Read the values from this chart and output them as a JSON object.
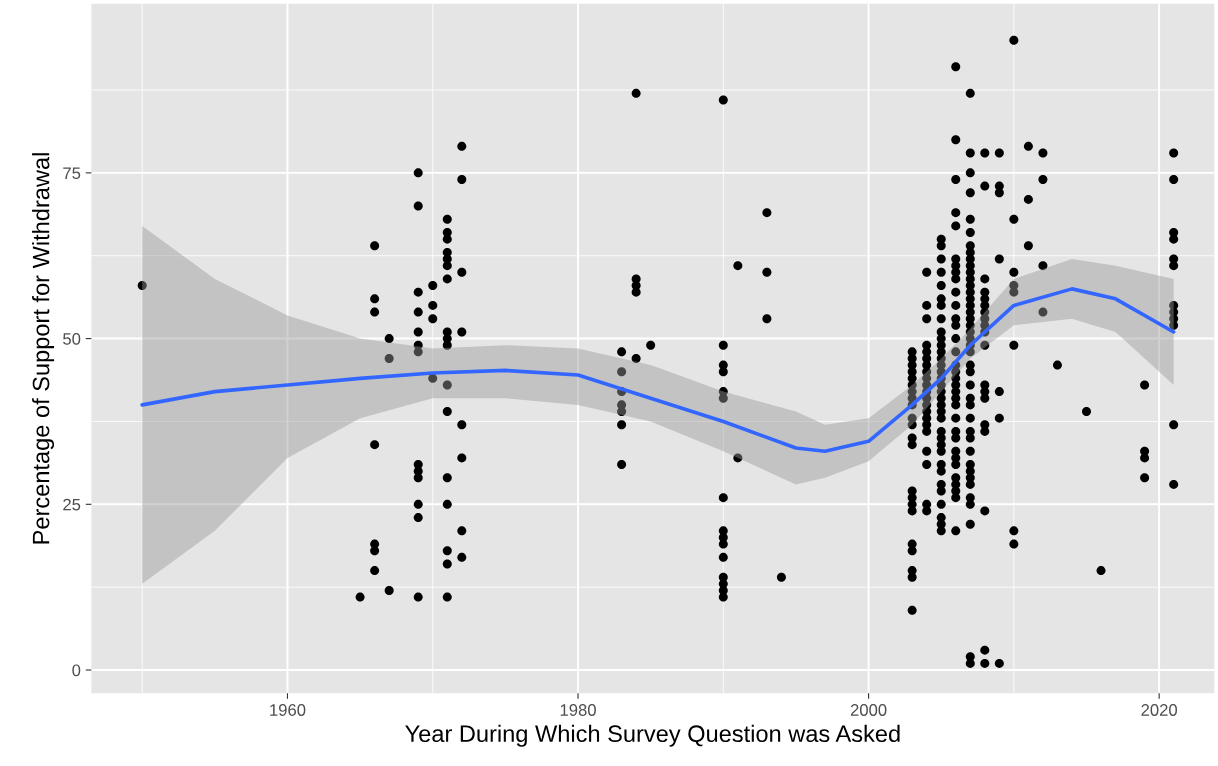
{
  "chart_data": {
    "type": "scatter",
    "xlabel": "Year During Which Survey Question was Asked",
    "ylabel": "Percentage of Support for Withdrawal",
    "xlim": [
      1946.5,
      2023.8
    ],
    "ylim": [
      -3.5,
      100.5
    ],
    "xticks": [
      1960,
      1980,
      2000,
      2020
    ],
    "yticks": [
      0,
      25,
      50,
      75
    ],
    "grid": true,
    "legend": false,
    "series": [
      {
        "color": "#000000",
        "marker": "circle",
        "x": [
          1950,
          1965,
          1966,
          1966,
          1966,
          1966,
          1966,
          1966,
          1966,
          1967,
          1967,
          1967,
          1969,
          1969,
          1969,
          1969,
          1969,
          1969,
          1969,
          1969,
          1969,
          1969,
          1969,
          1969,
          1969,
          1970,
          1970,
          1970,
          1970,
          1971,
          1971,
          1971,
          1971,
          1971,
          1971,
          1971,
          1971,
          1971,
          1971,
          1971,
          1971,
          1971,
          1971,
          1971,
          1971,
          1971,
          1972,
          1972,
          1972,
          1972,
          1972,
          1972,
          1972,
          1972,
          1983,
          1983,
          1983,
          1983,
          1983,
          1983,
          1983,
          1984,
          1984,
          1984,
          1984,
          1984,
          1985,
          1990,
          1990,
          1990,
          1990,
          1990,
          1990,
          1990,
          1990,
          1990,
          1990,
          1990,
          1990,
          1990,
          1990,
          1990,
          1991,
          1991,
          1993,
          1993,
          1993,
          1994,
          2003,
          2003,
          2003,
          2003,
          2003,
          2003,
          2003,
          2003,
          2003,
          2003,
          2003,
          2003,
          2003,
          2003,
          2003,
          2003,
          2003,
          2003,
          2003,
          2003,
          2003,
          2003,
          2004,
          2004,
          2004,
          2004,
          2004,
          2004,
          2004,
          2004,
          2004,
          2004,
          2004,
          2004,
          2004,
          2004,
          2004,
          2004,
          2004,
          2004,
          2004,
          2004,
          2004,
          2005,
          2005,
          2005,
          2005,
          2005,
          2005,
          2005,
          2005,
          2005,
          2005,
          2005,
          2005,
          2005,
          2005,
          2005,
          2005,
          2005,
          2005,
          2005,
          2005,
          2005,
          2005,
          2005,
          2005,
          2005,
          2005,
          2005,
          2005,
          2005,
          2005,
          2005,
          2005,
          2005,
          2005,
          2006,
          2006,
          2006,
          2006,
          2006,
          2006,
          2006,
          2006,
          2006,
          2006,
          2006,
          2006,
          2006,
          2006,
          2006,
          2006,
          2006,
          2006,
          2006,
          2006,
          2006,
          2006,
          2006,
          2006,
          2006,
          2006,
          2006,
          2006,
          2006,
          2006,
          2006,
          2006,
          2006,
          2007,
          2007,
          2007,
          2007,
          2007,
          2007,
          2007,
          2007,
          2007,
          2007,
          2007,
          2007,
          2007,
          2007,
          2007,
          2007,
          2007,
          2007,
          2007,
          2007,
          2007,
          2007,
          2007,
          2007,
          2007,
          2007,
          2007,
          2007,
          2007,
          2007,
          2007,
          2007,
          2007,
          2007,
          2007,
          2007,
          2007,
          2007,
          2007,
          2007,
          2007,
          2008,
          2008,
          2008,
          2008,
          2008,
          2008,
          2008,
          2008,
          2008,
          2008,
          2008,
          2008,
          2008,
          2008,
          2008,
          2008,
          2008,
          2008,
          2008,
          2009,
          2009,
          2009,
          2009,
          2009,
          2009,
          2009,
          2010,
          2010,
          2010,
          2010,
          2010,
          2010,
          2010,
          2010,
          2011,
          2011,
          2011,
          2012,
          2012,
          2012,
          2012,
          2013,
          2015,
          2016,
          2019,
          2019,
          2019,
          2019,
          2021,
          2021,
          2021,
          2021,
          2021,
          2021,
          2021,
          2021,
          2021,
          2021,
          2021,
          2021
        ],
        "values": [
          58,
          11,
          64,
          56,
          54,
          34,
          19,
          18,
          15,
          50,
          47,
          12,
          75,
          70,
          57,
          54,
          51,
          49,
          48,
          31,
          30,
          29,
          25,
          23,
          11,
          58,
          55,
          53,
          44,
          68,
          66,
          65,
          63,
          62,
          61,
          59,
          51,
          50,
          49,
          43,
          39,
          29,
          25,
          18,
          16,
          11,
          79,
          74,
          60,
          51,
          37,
          32,
          21,
          17,
          48,
          45,
          42,
          40,
          39,
          37,
          31,
          87,
          59,
          58,
          57,
          47,
          49,
          86,
          49,
          46,
          45,
          42,
          41,
          26,
          21,
          20,
          19,
          17,
          14,
          13,
          12,
          11,
          61,
          32,
          69,
          60,
          53,
          14,
          48,
          47,
          46,
          45,
          44,
          43,
          42,
          41,
          40,
          38,
          37,
          35,
          34,
          27,
          26,
          25,
          24,
          19,
          18,
          15,
          14,
          9,
          60,
          55,
          53,
          49,
          48,
          47,
          46,
          45,
          44,
          43,
          42,
          41,
          40,
          39,
          38,
          37,
          36,
          33,
          31,
          25,
          24,
          65,
          64,
          62,
          60,
          58,
          56,
          55,
          53,
          51,
          50,
          49,
          48,
          47,
          46,
          45,
          44,
          43,
          42,
          41,
          40,
          39,
          38,
          36,
          35,
          34,
          33,
          31,
          30,
          28,
          27,
          25,
          23,
          22,
          21,
          91,
          80,
          74,
          69,
          67,
          62,
          61,
          60,
          59,
          57,
          55,
          53,
          52,
          50,
          48,
          46,
          45,
          44,
          43,
          42,
          41,
          40,
          38,
          36,
          35,
          33,
          32,
          31,
          29,
          28,
          27,
          26,
          21,
          87,
          78,
          75,
          72,
          68,
          66,
          64,
          63,
          62,
          61,
          60,
          59,
          58,
          57,
          56,
          55,
          54,
          53,
          52,
          51,
          50,
          49,
          48,
          46,
          45,
          43,
          41,
          40,
          38,
          36,
          35,
          33,
          31,
          30,
          29,
          28,
          26,
          25,
          22,
          2,
          1,
          78,
          73,
          59,
          57,
          56,
          55,
          54,
          53,
          52,
          51,
          49,
          43,
          42,
          41,
          37,
          36,
          24,
          3,
          1,
          78,
          73,
          72,
          62,
          42,
          38,
          1,
          95,
          68,
          60,
          58,
          57,
          49,
          21,
          19,
          79,
          71,
          64,
          78,
          74,
          61,
          54,
          46,
          39,
          15,
          43,
          33,
          32,
          29,
          78,
          74,
          66,
          65,
          62,
          61,
          55,
          54,
          53,
          52,
          37,
          28
        ]
      },
      {
        "type": "line",
        "color": "#3366ff",
        "marker": "none",
        "x": [
          1950,
          1955,
          1960,
          1965,
          1970,
          1975,
          1980,
          1985,
          1990,
          1995,
          1997,
          2000,
          2003,
          2005,
          2007,
          2010,
          2014,
          2017,
          2021
        ],
        "values": [
          40,
          42,
          43,
          44,
          44.8,
          45.2,
          44.5,
          41,
          37.5,
          33.5,
          33,
          34.5,
          40,
          44,
          49,
          55,
          57.5,
          56,
          51
        ],
        "lower": [
          13,
          21,
          32,
          38,
          41,
          41,
          40,
          37.5,
          33,
          28,
          29,
          31.5,
          37,
          42,
          47,
          52,
          53,
          51,
          43
        ],
        "upper": [
          67,
          59,
          53.5,
          50,
          48.5,
          49,
          48.5,
          46,
          42,
          39,
          37,
          38,
          43,
          47,
          51.5,
          59,
          62,
          61,
          59
        ]
      }
    ]
  }
}
